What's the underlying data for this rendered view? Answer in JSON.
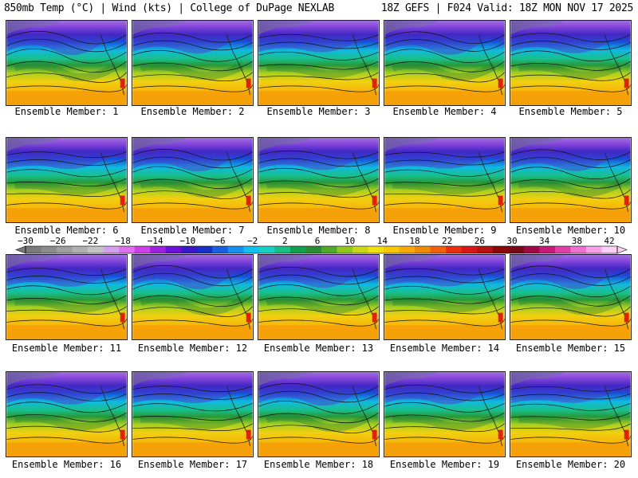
{
  "header": {
    "left": "850mb Temp (°C) | Wind (kts) | College of DuPage NEXLAB",
    "right": "18Z GEFS | F024 Valid: 18Z MON NOV 17 2025"
  },
  "panels": [
    {
      "label": "Ensemble Member: 1"
    },
    {
      "label": "Ensemble Member: 2"
    },
    {
      "label": "Ensemble Member: 3"
    },
    {
      "label": "Ensemble Member: 4"
    },
    {
      "label": "Ensemble Member: 5"
    },
    {
      "label": "Ensemble Member: 6"
    },
    {
      "label": "Ensemble Member: 7"
    },
    {
      "label": "Ensemble Member: 8"
    },
    {
      "label": "Ensemble Member: 9"
    },
    {
      "label": "Ensemble Member: 10"
    },
    {
      "label": "Ensemble Member: 11"
    },
    {
      "label": "Ensemble Member: 12"
    },
    {
      "label": "Ensemble Member: 13"
    },
    {
      "label": "Ensemble Member: 14"
    },
    {
      "label": "Ensemble Member: 15"
    },
    {
      "label": "Ensemble Member: 16"
    },
    {
      "label": "Ensemble Member: 17"
    },
    {
      "label": "Ensemble Member: 18"
    },
    {
      "label": "Ensemble Member: 19"
    },
    {
      "label": "Ensemble Member: 20"
    }
  ],
  "colorbar": {
    "labels": [
      "−30",
      "−26",
      "−22",
      "−18",
      "−14",
      "−10",
      "−6",
      "−2",
      "2",
      "6",
      "10",
      "14",
      "18",
      "22",
      "26",
      "30",
      "34",
      "38",
      "42"
    ],
    "colors": [
      "#7a7a7a",
      "#8c8c8c",
      "#9e9e9e",
      "#b0b0b0",
      "#c4c4c4",
      "#d6a0ee",
      "#e070f0",
      "#d040e8",
      "#a020e0",
      "#6a10d8",
      "#3a18c8",
      "#1830c8",
      "#1860e0",
      "#1890f0",
      "#10c0f0",
      "#18d0c0",
      "#18c088",
      "#10a050",
      "#2a8c30",
      "#50a828",
      "#90c820",
      "#c8d818",
      "#f0e010",
      "#f8c808",
      "#f8a808",
      "#f08808",
      "#f06010",
      "#e83010",
      "#d81818",
      "#b81010",
      "#8c0808",
      "#780818",
      "#a00848",
      "#c81878",
      "#e040a8",
      "#f070d0",
      "#f8a0e8",
      "#fcd0f4"
    ]
  }
}
